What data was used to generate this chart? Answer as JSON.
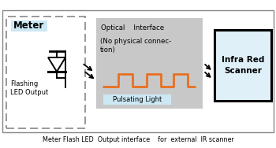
{
  "bg_color": "#ffffff",
  "meter_label": "Meter",
  "meter_label_bg": "#cce8f4",
  "led_label": "Flashing\nLED Output",
  "optical_box_color": "#c8c8c8",
  "optical_label_line1": "Optical    Interface",
  "optical_label_line2": "(No physical connec-\ntion)",
  "optical_sublabel": "Pulsating Light",
  "optical_sublabel_bg": "#cce8f4",
  "scanner_bg": "#dff0f8",
  "scanner_label": "Infra Red\nScanner",
  "pulse_color": "#e87020",
  "caption": "Meter Flash LED  Output interface    for  external  IR scanner",
  "outer_border_color": "#888888",
  "dash_color": "#888888"
}
